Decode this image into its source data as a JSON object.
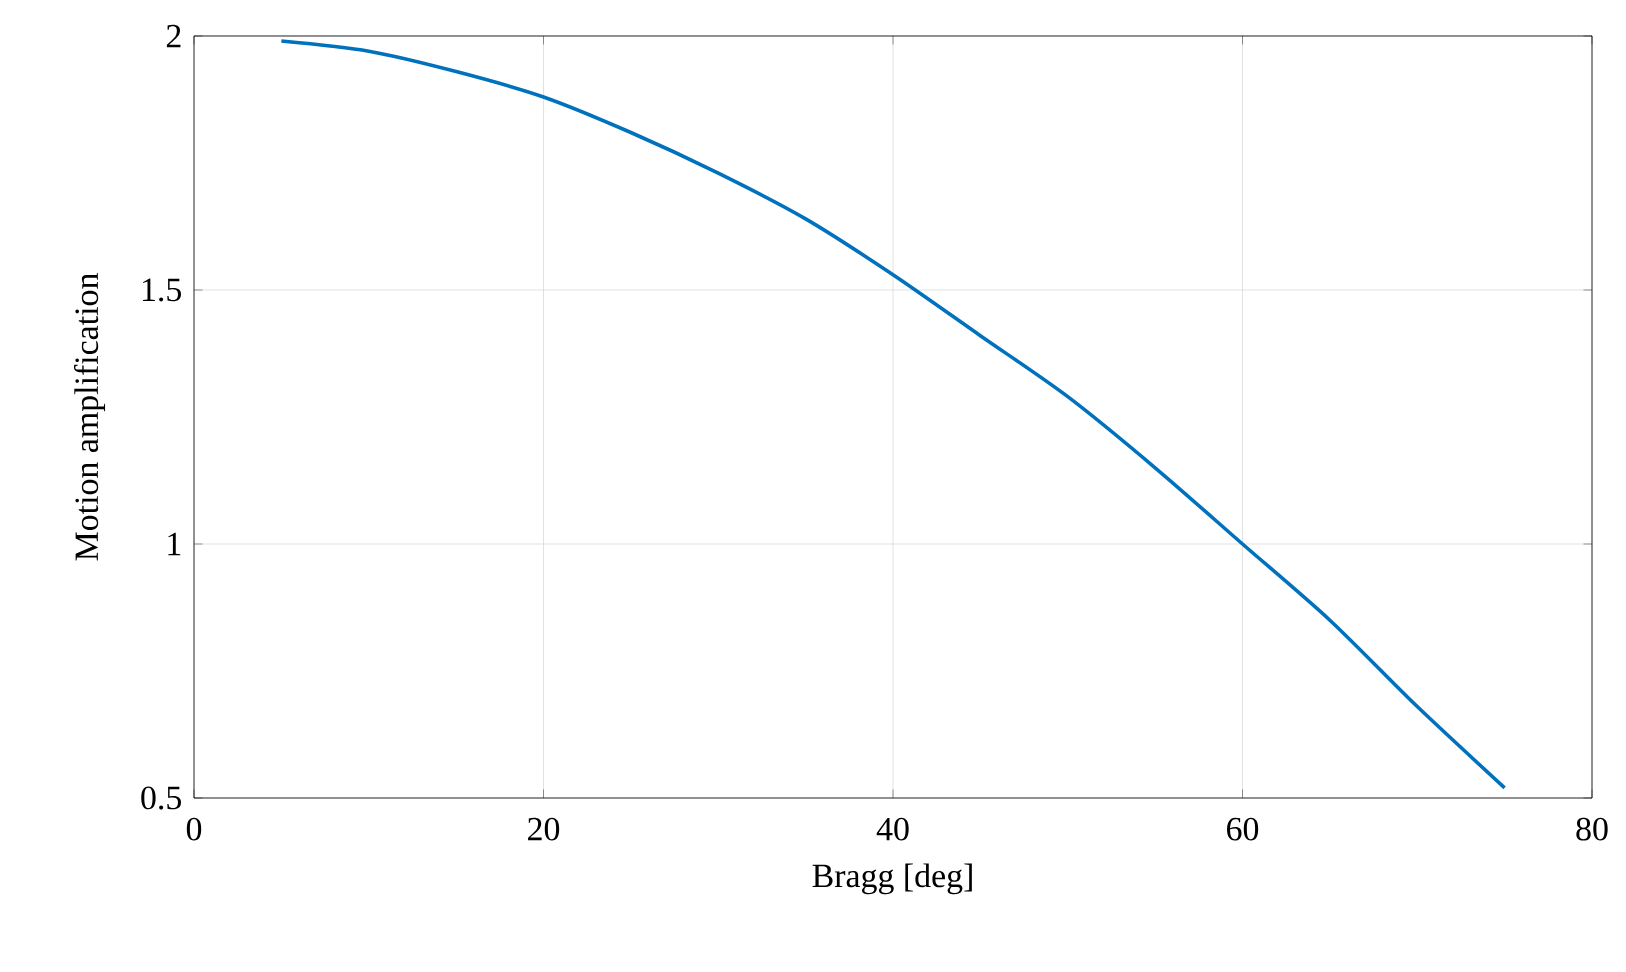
{
  "chart_data": {
    "type": "line",
    "xlabel": "Bragg [deg]",
    "ylabel": "Motion amplification",
    "x": [
      5,
      10,
      15,
      20,
      25,
      30,
      35,
      40,
      45,
      50,
      55,
      60,
      65,
      70,
      75
    ],
    "series": [
      {
        "color": "#0072bd",
        "values": [
          1.99,
          1.97,
          1.93,
          1.88,
          1.81,
          1.73,
          1.64,
          1.53,
          1.41,
          1.29,
          1.15,
          1.0,
          0.85,
          0.68,
          0.52
        ]
      }
    ],
    "xlim": [
      0,
      80
    ],
    "ylim": [
      0.5,
      2
    ],
    "xticks": [
      0,
      20,
      40,
      60,
      80
    ],
    "yticks": [
      0.5,
      1,
      1.5,
      2
    ],
    "grid": true,
    "marker": "none",
    "line_style": "solid"
  }
}
